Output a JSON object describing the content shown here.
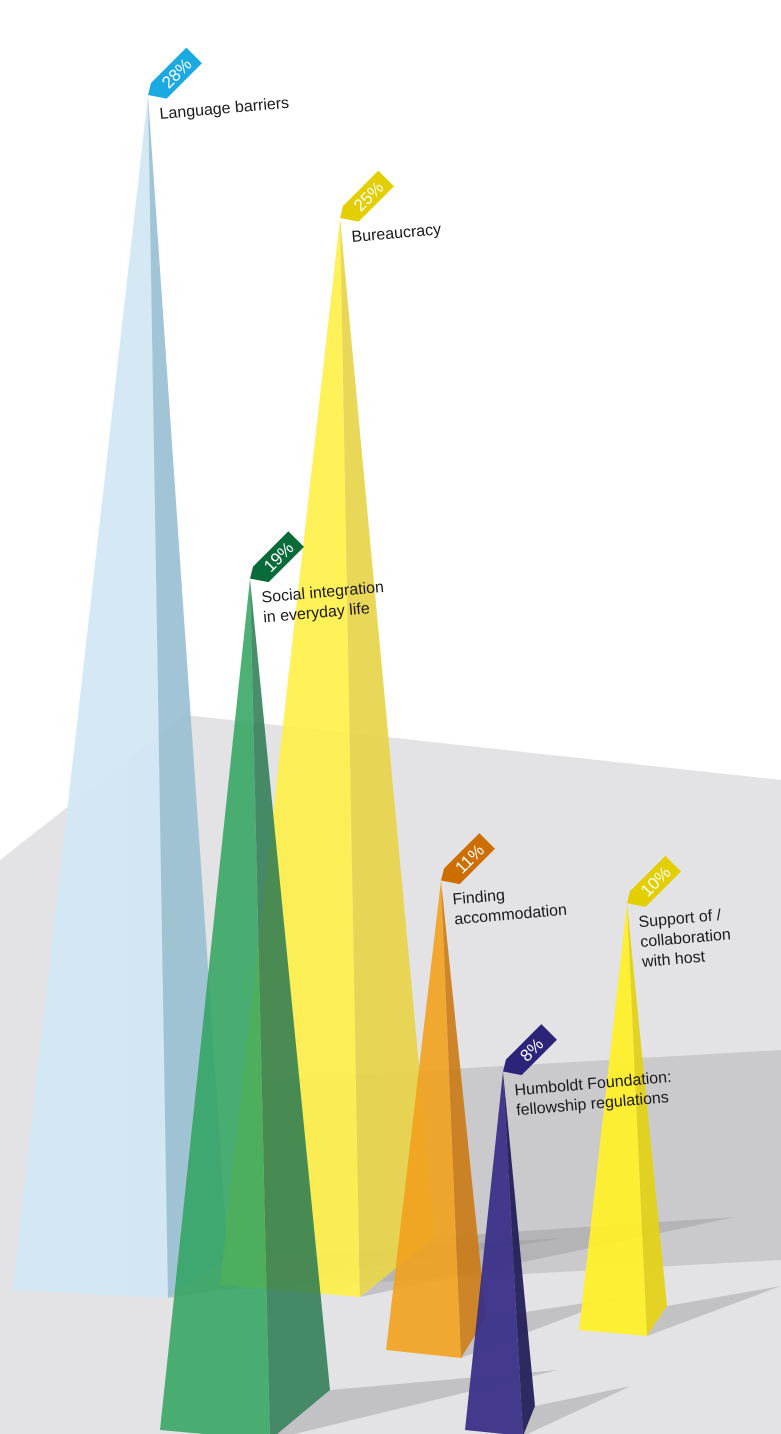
{
  "chart_data": {
    "type": "bar",
    "categories": [
      "Language barriers",
      "Bureaucracy",
      "Social integration in everyday life",
      "Finding accommodation",
      "Support of / collaboration with host",
      "Humboldt Foundation: fellowship regulations"
    ],
    "values": [
      28,
      25,
      19,
      11,
      10,
      8
    ],
    "value_labels": [
      "28%",
      "25%",
      "19%",
      "11%",
      "10%",
      "8%"
    ],
    "label_lines": [
      [
        "Language barriers"
      ],
      [
        "Bureaucracy"
      ],
      [
        "Social integration",
        "in everyday life"
      ],
      [
        "Finding",
        "accommodation"
      ],
      [
        "Support of /",
        "collaboration",
        "with host"
      ],
      [
        "Humboldt Foundation:",
        "fellowship regulations"
      ]
    ],
    "colors": [
      "#1aa9e1",
      "#e3cf00",
      "#0a6b3a",
      "#cc6e00",
      "#e3cf00",
      "#2c2478"
    ],
    "unit": "%"
  }
}
